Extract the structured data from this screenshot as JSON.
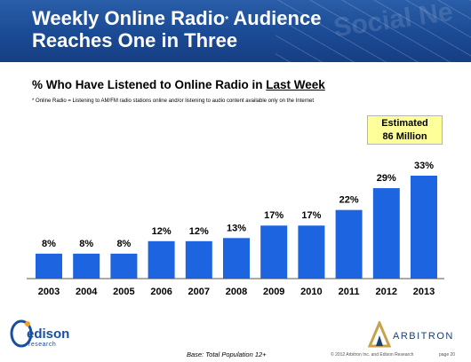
{
  "header": {
    "title_line1": "Weekly Online Radio",
    "title_sup": "*",
    "title_line1_end": "Audience",
    "title_line2": "Reaches One in Three",
    "banner_word": "Social Ne"
  },
  "subtitle_prefix": "% Who Have Listened to Online Radio in ",
  "subtitle_emphasis": "Last Week",
  "footnote": "* Online Radio = Listening to AM/FM radio stations online and/or listening to audio content available only on the Internet",
  "callout": {
    "line1": "Estimated",
    "line2": "86 Million",
    "bg_color": "#ffff99"
  },
  "footer": {
    "edison_word": "edison",
    "edison_sub": "research",
    "arbitron_word": "ARBITRON",
    "base": "Base: Total Population 12+",
    "copyright": "© 2012 Arbitron Inc. and Edison Research",
    "page": "page 20"
  },
  "colors": {
    "bar": "#1d64e0",
    "banner": "#1b4a94"
  },
  "chart_data": {
    "type": "bar",
    "title": "% Who Have Listened to Online Radio in Last Week",
    "xlabel": "",
    "ylabel": "",
    "categories": [
      "2003",
      "2004",
      "2005",
      "2006",
      "2007",
      "2008",
      "2009",
      "2010",
      "2011",
      "2012",
      "2013"
    ],
    "values": [
      8,
      8,
      8,
      12,
      12,
      13,
      17,
      17,
      22,
      29,
      33
    ],
    "value_labels": [
      "8%",
      "8%",
      "8%",
      "12%",
      "12%",
      "13%",
      "17%",
      "17%",
      "22%",
      "29%",
      "33%"
    ],
    "ylim": [
      0,
      35
    ],
    "grid": false,
    "legend": "none"
  }
}
